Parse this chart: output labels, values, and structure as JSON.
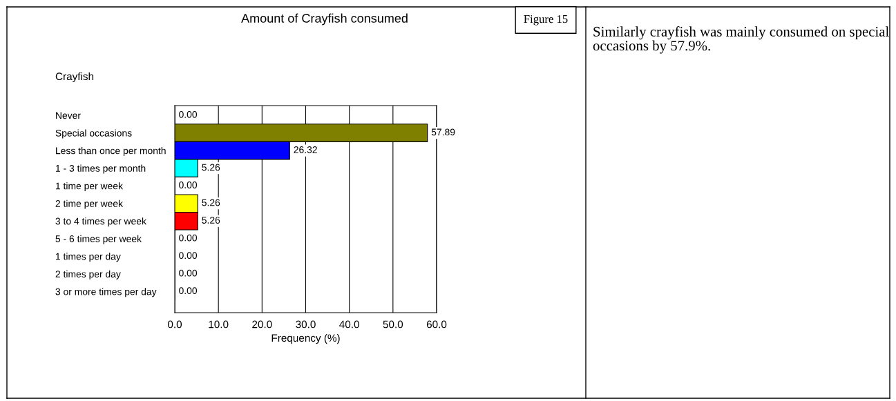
{
  "chart_data": {
    "type": "bar",
    "orientation": "horizontal",
    "title": "Amount of Crayfish consumed",
    "xlabel": "Frequency (%)",
    "ylabel": "Crayfish",
    "categories": [
      "Never",
      "Special occasions",
      "Less than once per month",
      "1 - 3 times per month",
      "1 time per week",
      "2 time per week",
      "3 to 4 times per week",
      "5 - 6 times per week",
      "1 times per day",
      "2 times per day",
      "3 or more times per day"
    ],
    "values": [
      0,
      57.89,
      26.32,
      5.26,
      0,
      5.26,
      5.26,
      0,
      0,
      0,
      0
    ],
    "colors": [
      "#ffffff",
      "#808000",
      "#0000ff",
      "#00ffff",
      "#ffffff",
      "#ffff00",
      "#ff0000",
      "#ffffff",
      "#ffffff",
      "#ffffff",
      "#ffffff"
    ],
    "value_labels": [
      "0.00",
      "57.89",
      "26.32",
      "5.26",
      "0.00",
      "5.26",
      "5.26",
      "0.00",
      "0.00",
      "0.00",
      "0.00"
    ],
    "xlim": [
      0,
      60
    ],
    "xticks": [
      {
        "value": 0,
        "label": "0.0"
      },
      {
        "value": 10,
        "label": "10.0"
      },
      {
        "value": 20,
        "label": "20.0"
      },
      {
        "value": 30,
        "label": "30.0"
      },
      {
        "value": 40,
        "label": "40.0"
      },
      {
        "value": 50,
        "label": "50.0"
      },
      {
        "value": 60,
        "label": "60.0"
      }
    ],
    "grid": "x",
    "legend": false,
    "annotations": [
      "Figure 15",
      "Similarly crayfish was mainly consumed on special occasions by 57.9%."
    ]
  }
}
